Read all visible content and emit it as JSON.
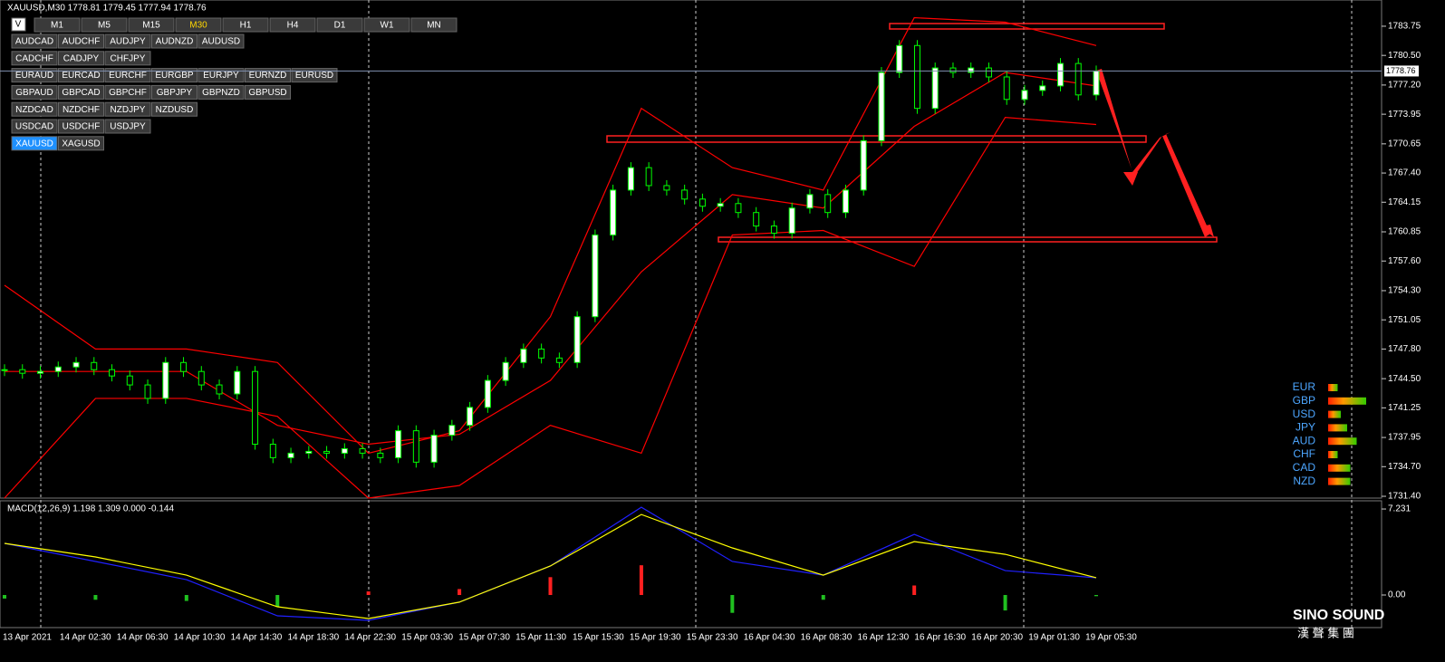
{
  "header": {
    "symbol_info": "XAUUSD,M30  1778.81 1779.45 1777.94 1778.76",
    "check": "V"
  },
  "timeframes": [
    "M1",
    "M5",
    "M15",
    "M30",
    "H1",
    "H4",
    "D1",
    "W1",
    "MN"
  ],
  "active_timeframe": "M30",
  "symbols": [
    [
      "AUDCAD",
      "AUDCHF",
      "AUDJPY",
      "AUDNZD",
      "AUDUSD"
    ],
    [
      "CADCHF",
      "CADJPY",
      "CHFJPY"
    ],
    [
      "EURAUD",
      "EURCAD",
      "EURCHF",
      "EURGBP",
      "EURJPY",
      "EURNZD",
      "EURUSD"
    ],
    [
      "GBPAUD",
      "GBPCAD",
      "GBPCHF",
      "GBPJPY",
      "GBPNZD",
      "GBPUSD"
    ],
    [
      "NZDCAD",
      "NZDCHF",
      "NZDJPY",
      "NZDUSD"
    ],
    [
      "USDCAD",
      "USDCHF",
      "USDJPY"
    ],
    [
      "XAUUSD",
      "XAGUSD"
    ]
  ],
  "active_symbol": "XAUUSD",
  "chart_data": [
    {
      "type": "candlestick",
      "color": "#00ff00",
      "values": [
        1745.5,
        1745.1,
        1745.3,
        1745.8,
        1746.3,
        1745.5,
        1744.8,
        1743.8,
        1742.3,
        1746.3,
        1745.3,
        1743.8,
        1742.8,
        1745.3,
        1737.2,
        1735.7,
        1736.2,
        1736.4,
        1736.2,
        1736.7,
        1736.2,
        1735.7,
        1738.7,
        1735.2,
        1738.2,
        1739.3,
        1741.3,
        1744.3,
        1746.3,
        1747.8,
        1746.8,
        1746.3,
        1751.4,
        1760.5,
        1765.5,
        1768.0,
        1766.0,
        1765.5,
        1764.5,
        1763.7,
        1764.0,
        1763.0,
        1761.5,
        1760.7,
        1763.5,
        1765.0,
        1763.0,
        1765.5,
        1771.0,
        1778.6,
        1781.6,
        1774.6,
        1779.1,
        1778.6,
        1779.1,
        1778.1,
        1775.6,
        1776.6,
        1777.1,
        1779.6,
        1776.1,
        1778.76
      ],
      "series": [
        {
          "color": "#ff0000",
          "values": [
            1754.9,
            1747.8,
            1747.8,
            1746.3,
            1736.2,
            1738.7,
            1751.4,
            1774.6,
            1768.0,
            1765.5,
            1784.7,
            1784.2,
            1781.6
          ]
        },
        {
          "color": "#ff0000",
          "values": [
            1745.3,
            1745.3,
            1745.3,
            1739.3,
            1737.2,
            1738.3,
            1744.3,
            1756.4,
            1765.0,
            1763.5,
            1772.6,
            1778.6,
            1777.1
          ]
        },
        {
          "color": "#ff0000",
          "values": [
            1731.2,
            1742.3,
            1742.3,
            1740.3,
            1731.2,
            1732.6,
            1739.3,
            1736.2,
            1760.5,
            1761.0,
            1757.0,
            1773.6,
            1772.8
          ]
        }
      ],
      "ylim": [
        1731.2,
        1786.67
      ],
      "yticks": [
        {
          "value": 1783.75,
          "label": "1783.75"
        },
        {
          "value": 1780.5,
          "label": "1780.50"
        },
        {
          "value": 1777.2,
          "label": "1777.20"
        },
        {
          "value": 1773.95,
          "label": "1773.95"
        },
        {
          "value": 1770.65,
          "label": "1770.65"
        },
        {
          "value": 1767.4,
          "label": "1767.40"
        },
        {
          "value": 1764.15,
          "label": "1764.15"
        },
        {
          "value": 1760.85,
          "label": "1760.85"
        },
        {
          "value": 1757.6,
          "label": "1757.60"
        },
        {
          "value": 1754.3,
          "label": "1754.30"
        },
        {
          "value": 1751.05,
          "label": "1751.05"
        },
        {
          "value": 1747.8,
          "label": "1747.80"
        },
        {
          "value": 1744.5,
          "label": "1744.50"
        },
        {
          "value": 1741.25,
          "label": "1741.25"
        },
        {
          "value": 1737.95,
          "label": "1737.95"
        },
        {
          "value": 1734.7,
          "label": "1734.70"
        },
        {
          "value": 1731.4,
          "label": "1731.40"
        }
      ],
      "current_price": 1778.76,
      "x_labels": [
        "13 Apr 2021",
        "14 Apr 02:30",
        "14 Apr 06:30",
        "14 Apr 10:30",
        "14 Apr 14:30",
        "14 Apr 18:30",
        "14 Apr 22:30",
        "15 Apr 03:30",
        "15 Apr 07:30",
        "15 Apr 11:30",
        "15 Apr 15:30",
        "15 Apr 19:30",
        "15 Apr 23:30",
        "16 Apr 04:30",
        "16 Apr 08:30",
        "16 Apr 12:30",
        "16 Apr 16:30",
        "16 Apr 20:30",
        "19 Apr 01:30",
        "19 Apr 05:30"
      ]
    },
    {
      "type": "macd",
      "title": "MACD(12,26,9) 1.198 1.309 0.000 -0.144",
      "series": [
        {
          "color": "#2020ff",
          "values": [
            4.34,
            2.82,
            1.29,
            -1.75,
            -2.13,
            -0.6,
            2.44,
            7.38,
            2.82,
            1.67,
            5.1,
            2.05,
            1.45
          ]
        },
        {
          "color": "#ffff00",
          "values": [
            4.34,
            3.2,
            1.67,
            -0.99,
            -1.98,
            -0.6,
            2.44,
            6.77,
            3.96,
            1.67,
            4.49,
            3.42,
            1.45
          ]
        }
      ],
      "histogram": [
        -0.3,
        -0.4,
        -0.5,
        -1.0,
        0.3,
        0.5,
        1.5,
        2.5,
        -1.5,
        -0.4,
        0.8,
        -1.3,
        -0.1
      ],
      "ylim": [
        -2.74,
        7.92
      ],
      "yticks": [
        7.231,
        {
          "value": 0,
          "label": "0.00"
        }
      ]
    }
  ],
  "strength": {
    "currencies": [
      "EUR",
      "GBP",
      "USD",
      "JPY",
      "AUD",
      "CHF",
      "CAD",
      "NZD"
    ],
    "bars": [
      3,
      12,
      4,
      6,
      9,
      3,
      7,
      7
    ]
  },
  "logo": {
    "name": "SINO SOUND",
    "chinese": "漢 聲 集 團"
  }
}
